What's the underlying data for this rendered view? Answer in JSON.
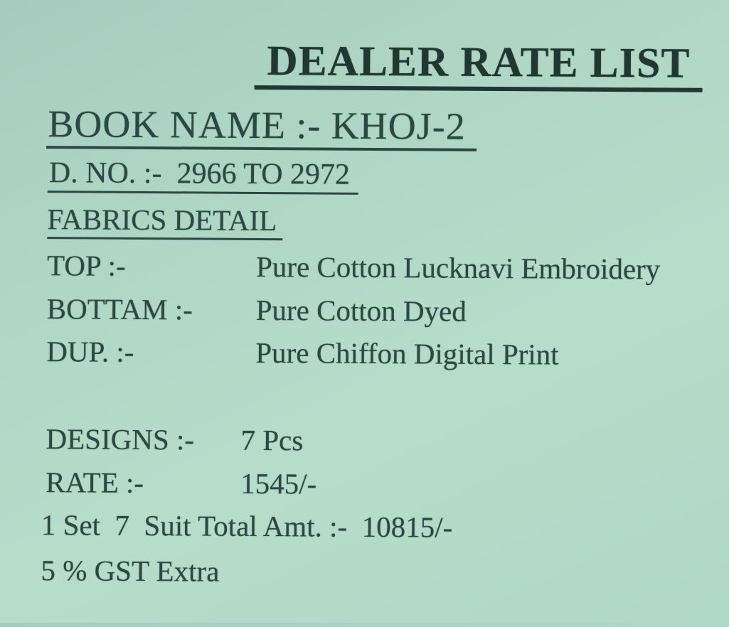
{
  "colors": {
    "paper": "#b0d6c6",
    "ink": "#2c4842",
    "title_ink": "#203832"
  },
  "document": {
    "title": "DEALER RATE LIST",
    "book_line": "BOOK NAME :- KHOJ-2",
    "dno_line": "D. NO. :-  2966 TO 2972",
    "fabrics_heading": "FABRICS DETAIL",
    "fabric_rows": [
      {
        "label": "TOP :-",
        "value": "Pure Cotton Lucknavi Embroidery"
      },
      {
        "label": "BOTTAM :-",
        "value": "Pure Cotton Dyed"
      },
      {
        "label": "DUP. :-",
        "value": "Pure Chiffon Digital Print"
      }
    ],
    "summary_rows": [
      {
        "label": "DESIGNS :-",
        "value": "7 Pcs"
      },
      {
        "label": "RATE :-",
        "value": "1545/-"
      }
    ],
    "total_line": "1 Set  7  Suit Total Amt. :-  10815/-",
    "gst_line": "5 % GST Extra"
  }
}
